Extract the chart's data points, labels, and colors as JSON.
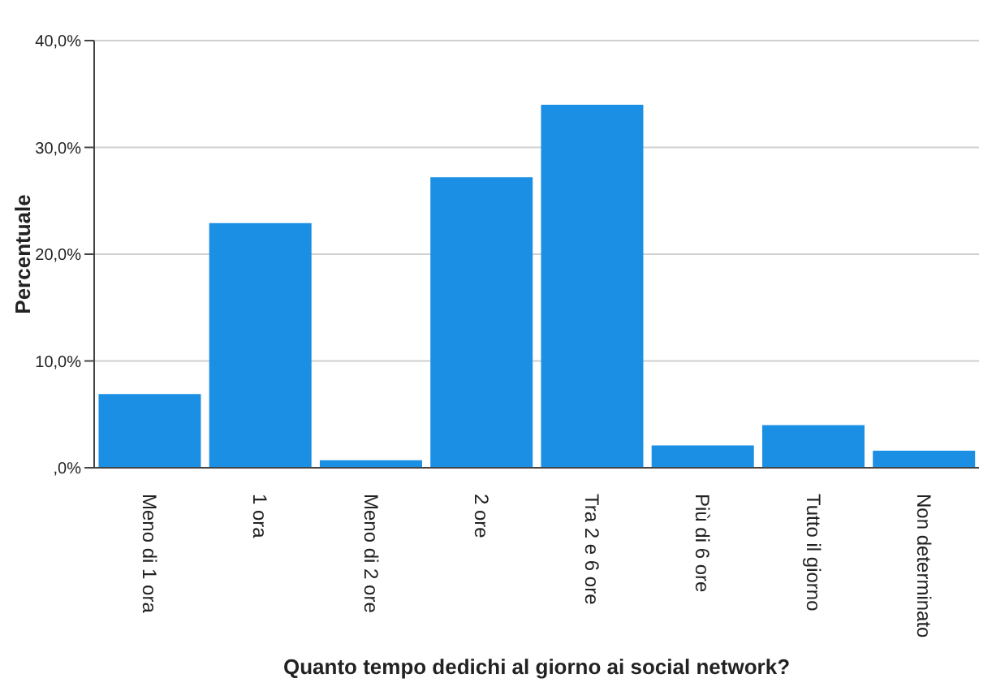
{
  "chart_data": {
    "type": "bar",
    "xlabel": "Quanto tempo dedichi al giorno ai social network?",
    "ylabel": "Percentuale",
    "categories": [
      "Meno di 1 ora",
      "1 ora",
      "Meno di 2 ore",
      "2 ore",
      "Tra 2 e 6 ore",
      "Più di 6 ore",
      "Tutto il giorno",
      "Non determinato"
    ],
    "values": [
      6.9,
      22.9,
      0.7,
      27.2,
      34.0,
      2.1,
      4.0,
      1.6
    ],
    "color": "#1a8fe3",
    "ylim": [
      0,
      40
    ],
    "yticks": [
      {
        "value": 0,
        "label": ",0%"
      },
      {
        "value": 10,
        "label": "10,0%"
      },
      {
        "value": 20,
        "label": "20,0%"
      },
      {
        "value": 30,
        "label": "30,0%"
      },
      {
        "value": 40,
        "label": "40,0%"
      }
    ],
    "grid": "y"
  }
}
